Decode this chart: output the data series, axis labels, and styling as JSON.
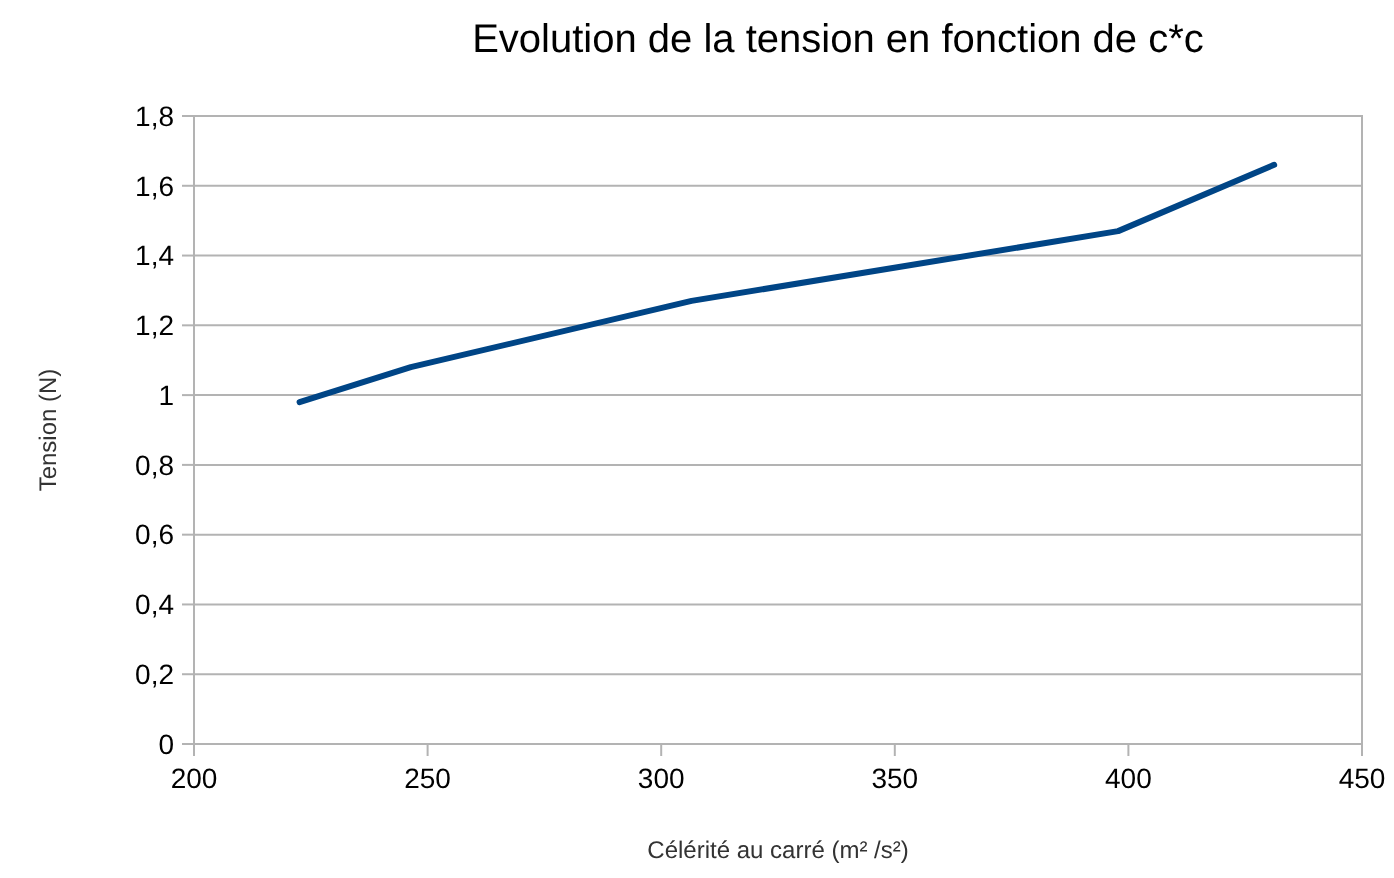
{
  "chart_data": {
    "type": "line",
    "title": "Evolution de la tension en fonction de c*c",
    "xlabel": "Célérité au carré (m² /s²)",
    "ylabel": "Tension (N)",
    "x": [
      222.6,
      246.4,
      306.5,
      397.8,
      431.2
    ],
    "series": [
      {
        "color": "#004586",
        "values": [
          0.98,
          1.08,
          1.27,
          1.47,
          1.66
        ]
      }
    ],
    "xlim": [
      200,
      450
    ],
    "xticks": [
      200,
      250,
      300,
      350,
      400,
      450
    ],
    "ylim": [
      0,
      1.8
    ],
    "yticks": [
      {
        "value": 0,
        "label": "0"
      },
      {
        "value": 0.2,
        "label": "0,2"
      },
      {
        "value": 0.4,
        "label": "0,4"
      },
      {
        "value": 0.6,
        "label": "0,6"
      },
      {
        "value": 0.8,
        "label": "0,8"
      },
      {
        "value": 1,
        "label": "1"
      },
      {
        "value": 1.2,
        "label": "1,2"
      },
      {
        "value": 1.4,
        "label": "1,4"
      },
      {
        "value": 1.6,
        "label": "1,6"
      },
      {
        "value": 1.8,
        "label": "1,8"
      }
    ],
    "grid": "y",
    "marker": "none",
    "line_style": "solid"
  }
}
